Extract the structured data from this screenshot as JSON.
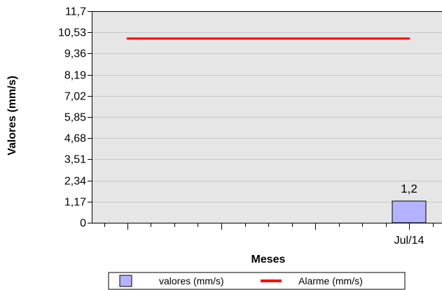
{
  "chart_data": {
    "type": "bar",
    "title": "",
    "xlabel": "Meses",
    "ylabel": "Valores  (mm/s)",
    "ylim": [
      0,
      11.7
    ],
    "yticks": [
      "0",
      "1,17",
      "2,34",
      "3,51",
      "4,68",
      "5,85",
      "7,02",
      "8,19",
      "9,36",
      "10,53",
      "11,7"
    ],
    "categories": [
      "Jul/14"
    ],
    "series": [
      {
        "name": "valores (mm/s)",
        "kind": "bar",
        "color": "#b3b3ff",
        "values": [
          1.2
        ],
        "labels": [
          "1,2"
        ]
      },
      {
        "name": "Alarme (mm/s)",
        "kind": "line",
        "color": "#ff0000",
        "values": [
          10.2
        ]
      }
    ],
    "grid": true,
    "legend": "bottom",
    "plot_background": "#e6e6e6"
  }
}
